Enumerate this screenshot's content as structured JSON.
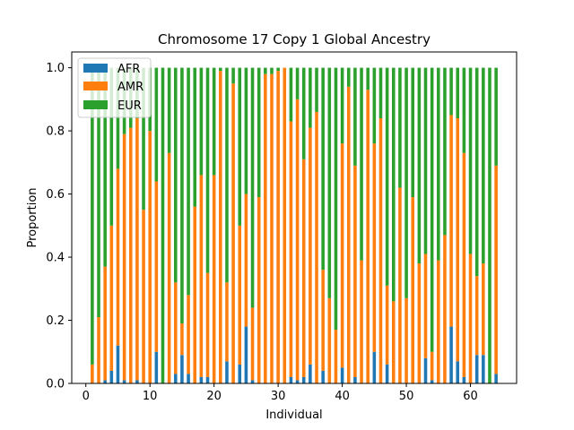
{
  "chart_data": {
    "type": "bar",
    "stacked": true,
    "title": "Chromosome 17 Copy 1 Global Ancestry",
    "xlabel": "Individual",
    "ylabel": "Proportion",
    "xlim": [
      -2.2,
      67.2
    ],
    "ylim": [
      0,
      1.05
    ],
    "xticks": [
      0,
      10,
      20,
      30,
      40,
      50,
      60
    ],
    "yticks": [
      0.0,
      0.2,
      0.4,
      0.6,
      0.8,
      1.0
    ],
    "ytick_labels": [
      "0.0",
      "0.2",
      "0.4",
      "0.6",
      "0.8",
      "1.0"
    ],
    "legend_position": "top-left",
    "grid": false,
    "x": [
      1,
      2,
      3,
      4,
      5,
      6,
      7,
      8,
      9,
      10,
      11,
      12,
      13,
      14,
      15,
      16,
      17,
      18,
      19,
      20,
      21,
      22,
      23,
      24,
      25,
      26,
      27,
      28,
      29,
      30,
      31,
      32,
      33,
      34,
      35,
      36,
      37,
      38,
      39,
      40,
      41,
      42,
      43,
      44,
      45,
      46,
      47,
      48,
      49,
      50,
      51,
      52,
      53,
      54,
      55,
      56,
      57,
      58,
      59,
      60,
      61,
      62,
      63,
      64
    ],
    "series": [
      {
        "name": "AFR",
        "color": "#1f77b4",
        "values": [
          0.0,
          0.0,
          0.01,
          0.04,
          0.12,
          0.01,
          0.0,
          0.01,
          0.0,
          0.0,
          0.1,
          0.0,
          0.0,
          0.03,
          0.09,
          0.03,
          0.0,
          0.02,
          0.02,
          0.0,
          0.0,
          0.07,
          0.0,
          0.06,
          0.18,
          0.01,
          0.0,
          0.0,
          0.0,
          0.0,
          0.0,
          0.02,
          0.01,
          0.02,
          0.06,
          0.0,
          0.04,
          0.0,
          0.0,
          0.05,
          0.0,
          0.02,
          0.0,
          0.0,
          0.1,
          0.0,
          0.06,
          0.0,
          0.0,
          0.0,
          0.0,
          0.0,
          0.08,
          0.01,
          0.0,
          0.0,
          0.18,
          0.07,
          0.02,
          0.0,
          0.09,
          0.09,
          0.0,
          0.03
        ]
      },
      {
        "name": "AMR",
        "color": "#ff7f0e",
        "values": [
          0.06,
          0.21,
          0.36,
          0.46,
          0.56,
          0.78,
          0.81,
          0.83,
          0.55,
          0.8,
          0.54,
          0.0,
          0.73,
          0.29,
          0.1,
          0.25,
          0.56,
          0.64,
          0.33,
          0.66,
          0.99,
          0.25,
          0.95,
          0.44,
          0.42,
          0.23,
          0.59,
          0.98,
          0.98,
          0.99,
          1.0,
          0.81,
          0.89,
          0.69,
          0.75,
          0.86,
          0.32,
          0.27,
          0.17,
          0.71,
          0.94,
          0.67,
          0.39,
          0.93,
          0.66,
          0.84,
          0.25,
          0.26,
          0.62,
          0.27,
          0.59,
          0.38,
          0.33,
          0.09,
          0.39,
          0.47,
          0.67,
          0.77,
          0.71,
          0.41,
          0.25,
          0.29,
          0.0,
          0.66
        ]
      },
      {
        "name": "EUR",
        "color": "#2ca02c",
        "values": [
          0.94,
          0.79,
          0.63,
          0.5,
          0.32,
          0.21,
          0.19,
          0.16,
          0.45,
          0.2,
          0.36,
          1.0,
          0.27,
          0.68,
          0.81,
          0.72,
          0.44,
          0.34,
          0.65,
          0.34,
          0.01,
          0.68,
          0.05,
          0.5,
          0.4,
          0.76,
          0.41,
          0.02,
          0.02,
          0.01,
          0.0,
          0.17,
          0.1,
          0.29,
          0.19,
          0.14,
          0.64,
          0.73,
          0.83,
          0.24,
          0.06,
          0.31,
          0.61,
          0.07,
          0.24,
          0.16,
          0.69,
          0.74,
          0.38,
          0.73,
          0.41,
          0.62,
          0.59,
          0.9,
          0.61,
          0.53,
          0.15,
          0.16,
          0.27,
          0.59,
          0.66,
          0.62,
          1.0,
          0.31
        ]
      }
    ]
  }
}
